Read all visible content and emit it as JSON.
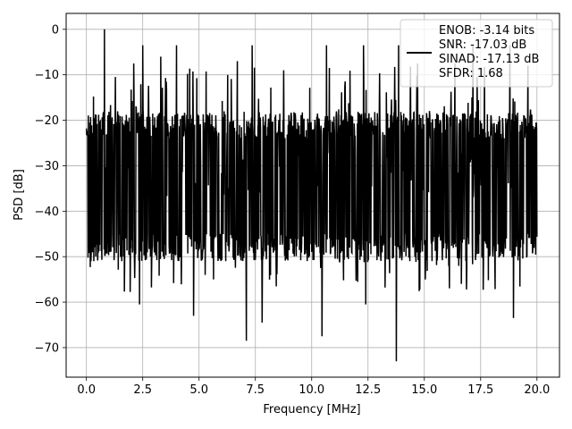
{
  "chart_data": {
    "type": "line",
    "title": "",
    "xlabel": "Frequency [MHz]",
    "ylabel": "PSD [dB]",
    "xlim": [
      -0.9,
      21.0
    ],
    "ylim": [
      -76.5,
      3.5
    ],
    "xticks": [
      0.0,
      2.5,
      5.0,
      7.5,
      10.0,
      12.5,
      15.0,
      17.5,
      20.0
    ],
    "xtick_labels": [
      "0.0",
      "2.5",
      "5.0",
      "7.5",
      "10.0",
      "12.5",
      "15.0",
      "17.5",
      "20.0"
    ],
    "yticks": [
      0,
      -10,
      -20,
      -30,
      -40,
      -50,
      -60,
      -70
    ],
    "ytick_labels": [
      "0",
      "−10",
      "−20",
      "−30",
      "−40",
      "−50",
      "−60",
      "−70"
    ],
    "grid": true,
    "legend_position": "top-right",
    "legend_entries": [
      "ENOB: -3.14 bits",
      "SNR: -17.03 dB",
      "SINAD: -17.13 dB",
      "SFDR: 1.68"
    ],
    "series": [
      {
        "color": "#000000",
        "x_range": [
          0.0,
          20.0
        ],
        "noise_floor_mean": -32,
        "noise_floor_band": [
          -45,
          -18
        ],
        "peaks": [
          {
            "x": 0.8,
            "y": 0.0
          },
          {
            "x": 2.5,
            "y": -3.5
          },
          {
            "x": 4.0,
            "y": -3.5
          },
          {
            "x": 7.35,
            "y": -3.5
          },
          {
            "x": 10.65,
            "y": -3.5
          },
          {
            "x": 12.3,
            "y": -3.5
          },
          {
            "x": 13.85,
            "y": -3.5
          },
          {
            "x": 17.15,
            "y": -3.5
          },
          {
            "x": 18.8,
            "y": -3.5
          },
          {
            "x": 2.1,
            "y": -7.5
          },
          {
            "x": 3.3,
            "y": -6.0
          },
          {
            "x": 6.7,
            "y": -7.0
          },
          {
            "x": 8.75,
            "y": -9.0
          },
          {
            "x": 14.7,
            "y": -7.5
          },
          {
            "x": 16.35,
            "y": -7.5
          },
          {
            "x": 19.6,
            "y": -8.0
          }
        ],
        "dips": [
          {
            "x": 0.2,
            "y": -51.0
          },
          {
            "x": 2.35,
            "y": -60.5
          },
          {
            "x": 4.75,
            "y": -63.0
          },
          {
            "x": 7.1,
            "y": -68.5
          },
          {
            "x": 7.8,
            "y": -64.5
          },
          {
            "x": 10.45,
            "y": -67.5
          },
          {
            "x": 12.4,
            "y": -60.5
          },
          {
            "x": 13.75,
            "y": -73.0
          },
          {
            "x": 18.95,
            "y": -63.5
          }
        ]
      }
    ]
  }
}
